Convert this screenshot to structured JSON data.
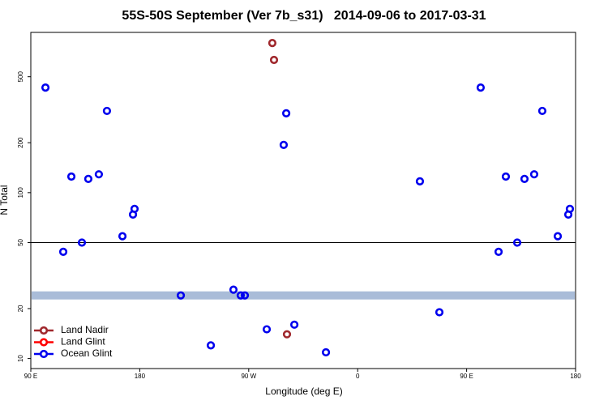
{
  "chart_data": {
    "type": "scatter",
    "title": "55S-50S September (Ver 7b_s31)   2014-09-06 to 2017-03-31",
    "xlabel": "Longitude (deg E)",
    "ylabel": "N Total",
    "xlim": [
      90,
      540
    ],
    "ylim": [
      8.7,
      925
    ],
    "log_y": true,
    "xticks": [
      {
        "value": 90,
        "label": "90 E"
      },
      {
        "value": 180,
        "label": "180"
      },
      {
        "value": 270,
        "label": "90 W"
      },
      {
        "value": 360,
        "label": "0"
      },
      {
        "value": 450,
        "label": "90 E"
      },
      {
        "value": 540,
        "label": "180"
      }
    ],
    "yticks": [
      10,
      20,
      50,
      100,
      200,
      500
    ],
    "hline": 50,
    "band": [
      22.7,
      25.4
    ],
    "band_color": "#a9bcd8",
    "legend": "bottom-left",
    "series": [
      {
        "name": "Land Nadir",
        "color": "#a0282d",
        "x": [
          289.5,
          290.9,
          301.6
        ],
        "values": [
          798,
          631,
          14
        ]
      },
      {
        "name": "Land Glint",
        "color": "#ff0000",
        "x": [],
        "values": []
      },
      {
        "name": "Ocean Glint",
        "color": "#0000ee",
        "x": [
          102.1,
          116.8,
          123.5,
          132.2,
          137.5,
          146.2,
          152.9,
          165.7,
          174.4,
          175.7,
          213.9,
          238.7,
          257.4,
          263.4,
          266.8,
          284.9,
          298.9,
          301.0,
          307.7,
          333.8,
          411.4,
          427.5,
          461.6,
          476.4,
          482.4,
          491.8,
          497.8,
          505.8,
          512.5,
          525.3,
          534.0,
          535.3
        ],
        "values": [
          430,
          44,
          125,
          50,
          121,
          129,
          311,
          54.6,
          73.8,
          79.8,
          24,
          12,
          26,
          24,
          24,
          15,
          194,
          301,
          16,
          10.9,
          117,
          19,
          430,
          44,
          125,
          50,
          121,
          129,
          311,
          54.6,
          73.8,
          79.8
        ]
      }
    ]
  }
}
